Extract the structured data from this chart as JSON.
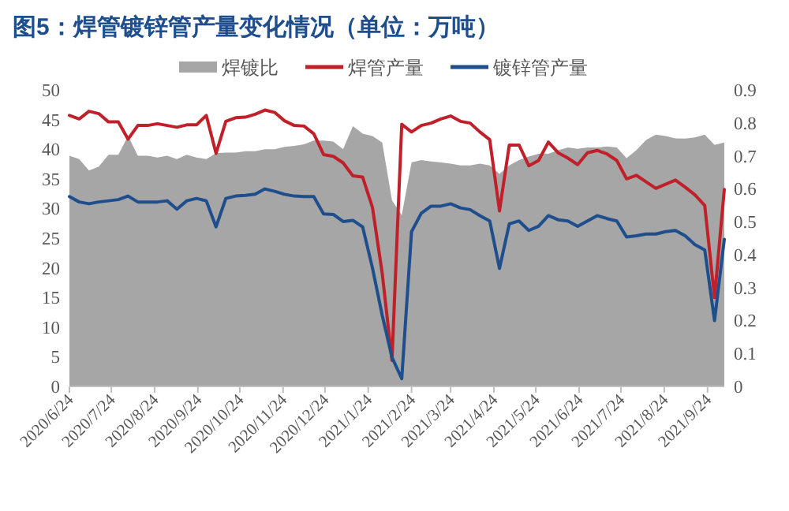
{
  "chart_data": {
    "type": "line",
    "title": "图5：焊管镀锌管产量变化情况（单位：万吨）",
    "x": [
      "2020-06-24",
      "2020-07-01",
      "2020-07-08",
      "2020-07-15",
      "2020-07-22",
      "2020-07-29",
      "2020-08-05",
      "2020-08-12",
      "2020-08-19",
      "2020-08-26",
      "2020-09-02",
      "2020-09-09",
      "2020-09-16",
      "2020-09-23",
      "2020-09-30",
      "2020-10-07",
      "2020-10-14",
      "2020-10-21",
      "2020-10-28",
      "2020-11-04",
      "2020-11-11",
      "2020-11-18",
      "2020-11-25",
      "2020-12-02",
      "2020-12-09",
      "2020-12-16",
      "2020-12-23",
      "2020-12-30",
      "2021-01-06",
      "2021-01-13",
      "2021-01-20",
      "2021-01-27",
      "2021-02-03",
      "2021-02-10",
      "2021-02-17",
      "2021-02-24",
      "2021-03-03",
      "2021-03-10",
      "2021-03-17",
      "2021-03-24",
      "2021-03-31",
      "2021-04-07",
      "2021-04-14",
      "2021-04-21",
      "2021-04-28",
      "2021-05-05",
      "2021-05-12",
      "2021-05-19",
      "2021-05-26",
      "2021-06-02",
      "2021-06-09",
      "2021-06-16",
      "2021-06-23",
      "2021-06-30",
      "2021-07-07",
      "2021-07-14",
      "2021-07-21",
      "2021-07-28",
      "2021-08-04",
      "2021-08-11",
      "2021-08-18",
      "2021-08-25",
      "2021-09-01",
      "2021-09-08",
      "2021-09-15",
      "2021-09-22",
      "2021-09-29",
      "2021-10-06"
    ],
    "series": [
      {
        "name": "焊镀比",
        "type": "area",
        "axis": "y2",
        "color": "#a6a6a6",
        "values": [
          0.7,
          0.69,
          0.655,
          0.667,
          0.703,
          0.703,
          0.76,
          0.7,
          0.7,
          0.695,
          0.7,
          0.69,
          0.703,
          0.695,
          0.69,
          0.708,
          0.71,
          0.71,
          0.714,
          0.714,
          0.72,
          0.72,
          0.727,
          0.73,
          0.735,
          0.746,
          0.746,
          0.743,
          0.72,
          0.79,
          0.767,
          0.76,
          0.74,
          0.565,
          0.52,
          0.68,
          0.687,
          0.683,
          0.68,
          0.676,
          0.671,
          0.671,
          0.676,
          0.671,
          0.645,
          0.671,
          0.687,
          0.698,
          0.706,
          0.706,
          0.717,
          0.725,
          0.721,
          0.725,
          0.725,
          0.728,
          0.725,
          0.693,
          0.717,
          0.748,
          0.764,
          0.76,
          0.753,
          0.752,
          0.756,
          0.764,
          0.733,
          0.74
        ]
      },
      {
        "name": "焊管产量",
        "color": "#c0202a",
        "values": [
          45.7,
          45.1,
          46.4,
          46,
          44.6,
          44.6,
          41.7,
          44,
          44,
          44.3,
          44,
          43.7,
          44.1,
          44.1,
          45.7,
          39.3,
          44.7,
          45.3,
          45.4,
          45.9,
          46.6,
          46.2,
          44.8,
          44,
          43.9,
          42.6,
          39.1,
          38.8,
          37.7,
          35.5,
          35.3,
          30.2,
          19.1,
          4.4,
          44.2,
          42.9,
          44,
          44.4,
          45.1,
          45.6,
          44.7,
          44.4,
          42.9,
          41.6,
          29.6,
          40.7,
          40.7,
          37.2,
          38.1,
          41.2,
          39.4,
          38.5,
          37.4,
          39.4,
          39.8,
          39.2,
          38.1,
          35,
          35.6,
          34.5,
          33.4,
          34.1,
          34.8,
          33.6,
          32.3,
          30.5,
          15,
          33.2
        ]
      },
      {
        "name": "镀锌管产量",
        "color": "#1f4e8c",
        "values": [
          32,
          31.1,
          30.8,
          31.1,
          31.3,
          31.5,
          32.1,
          31.1,
          31.1,
          31.1,
          31.3,
          29.9,
          31.3,
          31.7,
          31.3,
          26.9,
          31.7,
          32.1,
          32.2,
          32.4,
          33.3,
          32.9,
          32.4,
          32.1,
          32,
          32,
          29.1,
          29,
          27.8,
          28,
          26.9,
          20,
          12,
          4.9,
          1.3,
          26.1,
          29.2,
          30.4,
          30.4,
          30.8,
          30.1,
          29.8,
          28.8,
          27.9,
          19.9,
          27.4,
          27.9,
          26.3,
          27,
          28.8,
          28.1,
          27.9,
          27,
          27.9,
          28.8,
          28.3,
          27.9,
          25.2,
          25.4,
          25.7,
          25.7,
          26.1,
          26.3,
          25.4,
          23.9,
          23,
          11.1,
          24.8
        ]
      }
    ],
    "xlim": [
      "2020-06-24",
      "2021-10-06"
    ],
    "xticks": [
      {
        "value": "2020-06-24",
        "label": "2020/6/24"
      },
      {
        "value": "2020-07-24",
        "label": "2020/7/24"
      },
      {
        "value": "2020-08-24",
        "label": "2020/8/24"
      },
      {
        "value": "2020-09-24",
        "label": "2020/9/24"
      },
      {
        "value": "2020-10-24",
        "label": "2020/10/24"
      },
      {
        "value": "2020-11-24",
        "label": "2020/11/24"
      },
      {
        "value": "2020-12-24",
        "label": "2020/12/24"
      },
      {
        "value": "2021-01-24",
        "label": "2021/1/24"
      },
      {
        "value": "2021-02-24",
        "label": "2021/2/24"
      },
      {
        "value": "2021-03-24",
        "label": "2021/3/24"
      },
      {
        "value": "2021-04-24",
        "label": "2021/4/24"
      },
      {
        "value": "2021-05-24",
        "label": "2021/5/24"
      },
      {
        "value": "2021-06-24",
        "label": "2021/6/24"
      },
      {
        "value": "2021-07-24",
        "label": "2021/7/24"
      },
      {
        "value": "2021-08-24",
        "label": "2021/8/24"
      },
      {
        "value": "2021-09-24",
        "label": "2021/9/24"
      }
    ],
    "ylim": [
      0,
      50
    ],
    "yticks": [
      0,
      5,
      10,
      15,
      20,
      25,
      30,
      35,
      40,
      45,
      50
    ],
    "y2lim": [
      0,
      0.9
    ],
    "y2ticks": [
      0,
      0.1,
      0.2,
      0.3,
      0.4,
      0.5,
      0.6,
      0.7,
      0.8,
      0.9
    ],
    "legend": "top",
    "grid": false
  }
}
